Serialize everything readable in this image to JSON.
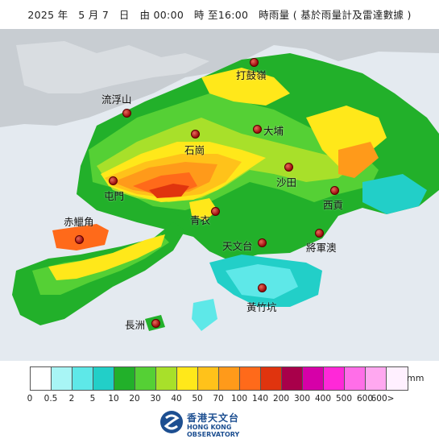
{
  "title": "2025 年　5 月 7　日　由 00:00　時 至16:00　時雨量 ( 基於雨量計及雷達數據 )",
  "stations": [
    {
      "name": "打鼓嶺"
    },
    {
      "name": "流浮山"
    },
    {
      "name": "大埔"
    },
    {
      "name": "石崗"
    },
    {
      "name": "沙田"
    },
    {
      "name": "屯門"
    },
    {
      "name": "西貢"
    },
    {
      "name": "青衣"
    },
    {
      "name": "赤鱲角"
    },
    {
      "name": "天文台"
    },
    {
      "name": "將軍澳"
    },
    {
      "name": "黃竹坑"
    },
    {
      "name": "長洲"
    }
  ],
  "legend": {
    "unit": "mm",
    "colors": [
      "#ffffff",
      "#a8f5f5",
      "#5ee8e8",
      "#22cfc8",
      "#22b02a",
      "#55d035",
      "#a8e02a",
      "#ffe81a",
      "#ffc21a",
      "#ff9a1a",
      "#ff6a1a",
      "#e0340e",
      "#a8004a",
      "#d600a8",
      "#ff28d8",
      "#ff6ee8",
      "#ffa8f0",
      "#fff0ff"
    ],
    "ticks": [
      "0",
      "0.5",
      "2",
      "5",
      "10",
      "20",
      "30",
      "40",
      "50",
      "70",
      "100",
      "140",
      "200",
      "300",
      "400",
      "500",
      "600",
      "600>"
    ]
  },
  "logo": {
    "chinese": "香港天文台",
    "english": "HONG KONG OBSERVATORY"
  }
}
